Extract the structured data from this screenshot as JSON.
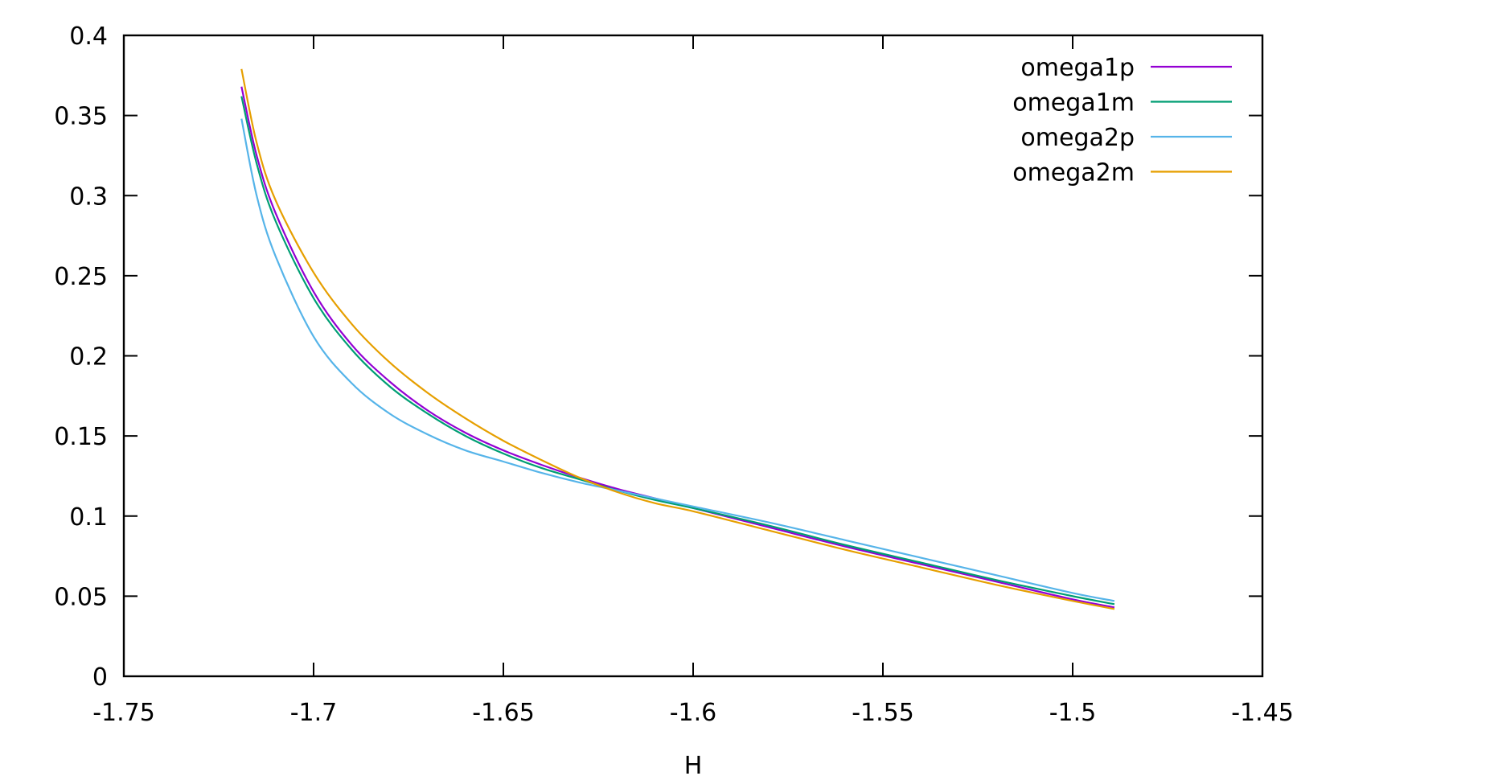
{
  "chart_data": {
    "type": "line",
    "title": "",
    "xlabel": "H",
    "ylabel": "",
    "xlim": [
      -1.75,
      -1.45
    ],
    "ylim": [
      0,
      0.4
    ],
    "xticks": [
      "-1.75",
      "-1.7",
      "-1.65",
      "-1.6",
      "-1.55",
      "-1.5",
      "-1.45"
    ],
    "yticks": [
      "0",
      "0.05",
      "0.1",
      "0.15",
      "0.2",
      "0.25",
      "0.3",
      "0.35",
      "0.4"
    ],
    "grid": false,
    "legend_position": "top-right",
    "series": [
      {
        "name": "omega1p",
        "color": "#9400d3",
        "x": [
          -1.719,
          -1.715,
          -1.71,
          -1.7,
          -1.69,
          -1.68,
          -1.67,
          -1.66,
          -1.65,
          -1.64,
          -1.63,
          -1.62,
          -1.61,
          -1.6,
          -1.58,
          -1.56,
          -1.54,
          -1.52,
          -1.5,
          -1.489
        ],
        "y": [
          0.368,
          0.325,
          0.289,
          0.24,
          0.207,
          0.184,
          0.166,
          0.152,
          0.141,
          0.132,
          0.124,
          0.117,
          0.111,
          0.105,
          0.093,
          0.081,
          0.07,
          0.059,
          0.048,
          0.043
        ]
      },
      {
        "name": "omega1m",
        "color": "#009e73",
        "x": [
          -1.719,
          -1.715,
          -1.71,
          -1.7,
          -1.69,
          -1.68,
          -1.67,
          -1.66,
          -1.65,
          -1.64,
          -1.63,
          -1.62,
          -1.61,
          -1.6,
          -1.58,
          -1.56,
          -1.54,
          -1.52,
          -1.5,
          -1.489
        ],
        "y": [
          0.362,
          0.32,
          0.284,
          0.236,
          0.204,
          0.181,
          0.164,
          0.15,
          0.139,
          0.13,
          0.123,
          0.116,
          0.11,
          0.105,
          0.094,
          0.082,
          0.071,
          0.06,
          0.05,
          0.045
        ]
      },
      {
        "name": "omega2p",
        "color": "#56b4e9",
        "x": [
          -1.719,
          -1.715,
          -1.71,
          -1.7,
          -1.69,
          -1.68,
          -1.67,
          -1.66,
          -1.65,
          -1.64,
          -1.63,
          -1.62,
          -1.61,
          -1.6,
          -1.58,
          -1.56,
          -1.54,
          -1.52,
          -1.5,
          -1.489
        ],
        "y": [
          0.348,
          0.3,
          0.262,
          0.212,
          0.183,
          0.164,
          0.151,
          0.141,
          0.134,
          0.127,
          0.121,
          0.116,
          0.111,
          0.106,
          0.096,
          0.085,
          0.074,
          0.063,
          0.052,
          0.047
        ]
      },
      {
        "name": "omega2m",
        "color": "#e69f00",
        "x": [
          -1.719,
          -1.715,
          -1.71,
          -1.7,
          -1.69,
          -1.68,
          -1.67,
          -1.66,
          -1.65,
          -1.64,
          -1.63,
          -1.62,
          -1.61,
          -1.6,
          -1.58,
          -1.56,
          -1.54,
          -1.52,
          -1.5,
          -1.489
        ],
        "y": [
          0.379,
          0.333,
          0.297,
          0.252,
          0.22,
          0.196,
          0.177,
          0.161,
          0.147,
          0.135,
          0.124,
          0.115,
          0.108,
          0.103,
          0.091,
          0.079,
          0.068,
          0.057,
          0.047,
          0.042
        ]
      }
    ]
  }
}
